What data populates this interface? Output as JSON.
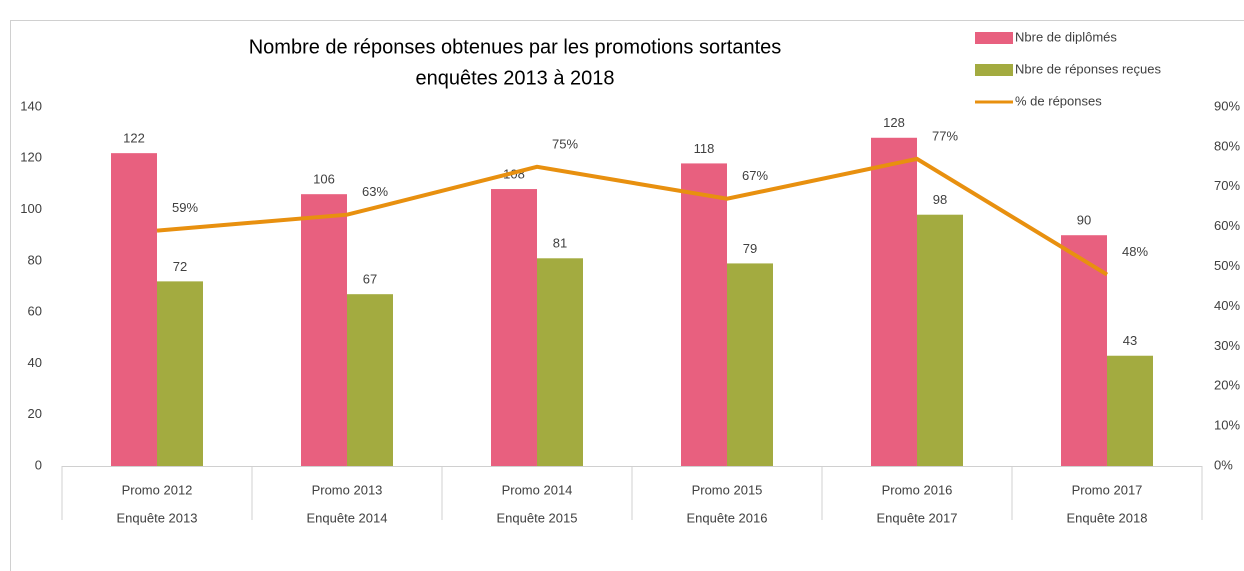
{
  "chart_data": {
    "type": "bar_line",
    "title": "Nombre de réponses obtenues par les promotions sortantes",
    "subtitle": "enquêtes 2013 à 2018",
    "categories": [
      [
        "Promo 2012",
        "Enquête 2013"
      ],
      [
        "Promo 2013",
        "Enquête 2014"
      ],
      [
        "Promo 2014",
        "Enquête 2015"
      ],
      [
        "Promo 2015",
        "Enquête 2016"
      ],
      [
        "Promo 2016",
        "Enquête 2017"
      ],
      [
        "Promo 2017",
        "Enquête 2018"
      ]
    ],
    "series": [
      {
        "name": "Nbre de diplômés",
        "color": "#e8607f",
        "values": [
          122,
          106,
          108,
          118,
          128,
          90
        ]
      },
      {
        "name": "Nbre de réponses reçues",
        "color": "#a3ab40",
        "values": [
          72,
          67,
          81,
          79,
          98,
          43
        ]
      },
      {
        "name": "% de réponses",
        "color": "#e8900f",
        "axis": "y2",
        "kind": "line",
        "values": [
          59,
          63,
          75,
          67,
          77,
          48
        ],
        "value_labels": [
          "59%",
          "63%",
          "75%",
          "67%",
          "77%",
          "48%"
        ]
      }
    ],
    "ylim": [
      0,
      140
    ],
    "yticks": [
      0,
      20,
      40,
      60,
      80,
      100,
      120,
      140
    ],
    "y2lim": [
      0,
      90
    ],
    "y2ticks": [
      {
        "value": 0,
        "label": "0%"
      },
      {
        "value": 10,
        "label": "10%"
      },
      {
        "value": 20,
        "label": "20%"
      },
      {
        "value": 30,
        "label": "30%"
      },
      {
        "value": 40,
        "label": "40%"
      },
      {
        "value": 50,
        "label": "50%"
      },
      {
        "value": 60,
        "label": "60%"
      },
      {
        "value": 70,
        "label": "70%"
      },
      {
        "value": 80,
        "label": "80%"
      },
      {
        "value": 90,
        "label": "90%"
      }
    ],
    "legend": "top-right"
  }
}
